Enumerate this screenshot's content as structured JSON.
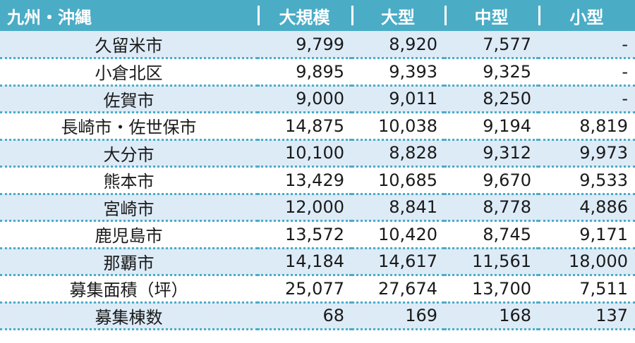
{
  "header": {
    "region": "九州・沖縄",
    "columns": [
      "大規模",
      "大型",
      "中型",
      "小型"
    ]
  },
  "rows": [
    {
      "name": "久留米市",
      "values": [
        "9,799",
        "8,920",
        "7,577",
        "-"
      ]
    },
    {
      "name": "小倉北区",
      "values": [
        "9,895",
        "9,393",
        "9,325",
        "-"
      ]
    },
    {
      "name": "佐賀市",
      "values": [
        "9,000",
        "9,011",
        "8,250",
        "-"
      ]
    },
    {
      "name": "長崎市・佐世保市",
      "values": [
        "14,875",
        "10,038",
        "9,194",
        "8,819"
      ]
    },
    {
      "name": "大分市",
      "values": [
        "10,100",
        "8,828",
        "9,312",
        "9,973"
      ]
    },
    {
      "name": "熊本市",
      "values": [
        "13,429",
        "10,685",
        "9,670",
        "9,533"
      ]
    },
    {
      "name": "宮崎市",
      "values": [
        "12,000",
        "8,841",
        "8,778",
        "4,886"
      ]
    },
    {
      "name": "鹿児島市",
      "values": [
        "13,572",
        "10,420",
        "8,745",
        "9,171"
      ]
    },
    {
      "name": "那覇市",
      "values": [
        "14,184",
        "14,617",
        "11,561",
        "18,000"
      ]
    },
    {
      "name": "募集面積（坪）",
      "values": [
        "25,077",
        "27,674",
        "13,700",
        "7,511"
      ]
    },
    {
      "name": "募集棟数",
      "values": [
        "68",
        "169",
        "168",
        "137"
      ]
    }
  ],
  "colors": {
    "header_bg": "#4BACC6",
    "row_band": "#DDEBF7",
    "row_plain": "#FFFFFF",
    "divider": "#4BACC6"
  }
}
